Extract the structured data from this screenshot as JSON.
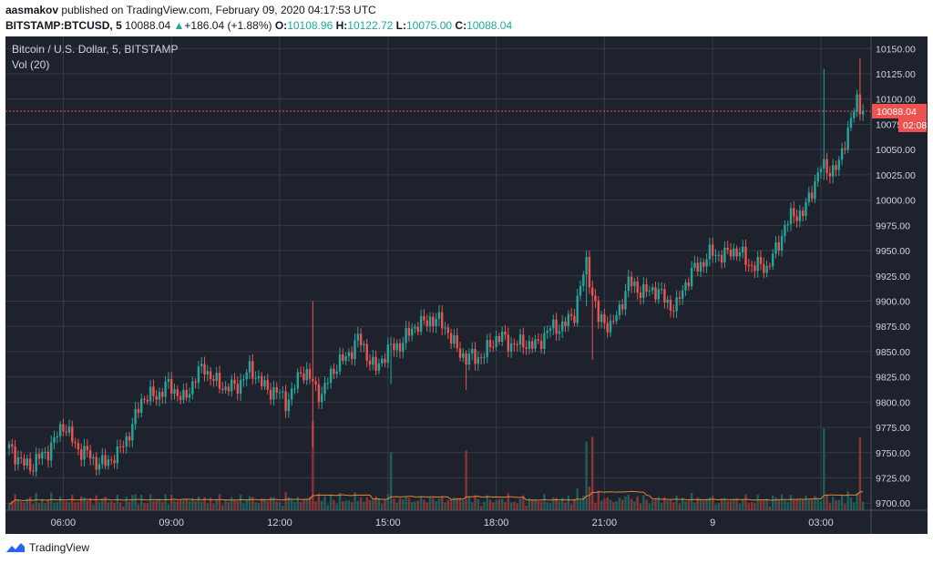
{
  "header": {
    "publisher": "aasmakov",
    "published_text": "published on TradingView.com, February 09, 2020 04:17:53 UTC",
    "symbol": "BITSTAMP:BTCUSD, 5",
    "last": "10088.04",
    "change": "+186.04 (+1.88%)",
    "o_label": "O:",
    "o_value": "10108.96",
    "h_label": "H:",
    "h_value": "10122.72",
    "l_label": "L:",
    "l_value": "10075.00",
    "c_label": "C:",
    "c_value": "10088.04"
  },
  "legend": {
    "title": "Bitcoin / U.S. Dollar, 5, BITSTAMP",
    "indicator": "Vol (20)"
  },
  "footer": {
    "brand": "TradingView"
  },
  "colors": {
    "background": "#1e222d",
    "grid": "#363a45",
    "up": "#26a69a",
    "down": "#ef5350",
    "up_volume": "#1f5f57",
    "down_volume": "#8a3436",
    "volume_ma": "#e0883d",
    "price_line": "#ef5350",
    "axis_text": "#d1d4dc"
  },
  "chart_data": {
    "type": "candlestick",
    "title": "Bitcoin / U.S. Dollar, 5, BITSTAMP",
    "ylim": [
      9693,
      10162
    ],
    "y_ticks": [
      "10150.00",
      "10125.00",
      "10100.00",
      "10075.00",
      "10050.00",
      "10025.00",
      "10000.00",
      "9975.00",
      "9950.00",
      "9925.00",
      "9900.00",
      "9875.00",
      "9850.00",
      "9825.00",
      "9800.00",
      "9775.00",
      "9750.00",
      "9725.00",
      "9700.00"
    ],
    "x_ticks": [
      "06:00",
      "09:00",
      "12:00",
      "15:00",
      "18:00",
      "21:00",
      "9",
      "03:00"
    ],
    "last_price": "10088.04",
    "countdown": "02:08",
    "volume_indicator": "Vol (20)",
    "close_anchors": [
      {
        "bar": 0,
        "close": 9752
      },
      {
        "bar": 8,
        "close": 9735
      },
      {
        "bar": 18,
        "close": 9775
      },
      {
        "bar": 22,
        "close": 9760
      },
      {
        "bar": 28,
        "close": 9740
      },
      {
        "bar": 36,
        "close": 9745
      },
      {
        "bar": 44,
        "close": 9800
      },
      {
        "bar": 52,
        "close": 9815
      },
      {
        "bar": 58,
        "close": 9805
      },
      {
        "bar": 65,
        "close": 9835
      },
      {
        "bar": 72,
        "close": 9810
      },
      {
        "bar": 80,
        "close": 9830
      },
      {
        "bar": 86,
        "close": 9815
      },
      {
        "bar": 92,
        "close": 9800
      },
      {
        "bar": 97,
        "close": 9830
      },
      {
        "bar": 104,
        "close": 9810
      },
      {
        "bar": 110,
        "close": 9840
      },
      {
        "bar": 116,
        "close": 9860
      },
      {
        "bar": 122,
        "close": 9835
      },
      {
        "bar": 128,
        "close": 9855
      },
      {
        "bar": 134,
        "close": 9870
      },
      {
        "bar": 140,
        "close": 9885
      },
      {
        "bar": 146,
        "close": 9870
      },
      {
        "bar": 152,
        "close": 9840
      },
      {
        "bar": 158,
        "close": 9850
      },
      {
        "bar": 164,
        "close": 9865
      },
      {
        "bar": 170,
        "close": 9855
      },
      {
        "bar": 176,
        "close": 9860
      },
      {
        "bar": 182,
        "close": 9875
      },
      {
        "bar": 188,
        "close": 9885
      },
      {
        "bar": 192,
        "close": 9940
      },
      {
        "bar": 196,
        "close": 9880
      },
      {
        "bar": 200,
        "close": 9875
      },
      {
        "bar": 206,
        "close": 9915
      },
      {
        "bar": 214,
        "close": 9910
      },
      {
        "bar": 222,
        "close": 9895
      },
      {
        "bar": 228,
        "close": 9935
      },
      {
        "bar": 234,
        "close": 9945
      },
      {
        "bar": 240,
        "close": 9950
      },
      {
        "bar": 246,
        "close": 9940
      },
      {
        "bar": 252,
        "close": 9930
      },
      {
        "bar": 258,
        "close": 9975
      },
      {
        "bar": 264,
        "close": 9990
      },
      {
        "bar": 270,
        "close": 10030
      },
      {
        "bar": 276,
        "close": 10035
      },
      {
        "bar": 282,
        "close": 10100
      },
      {
        "bar": 284,
        "close": 10088
      }
    ],
    "spikes": [
      {
        "bar": 101,
        "high": 9900,
        "low": 9755
      },
      {
        "bar": 127,
        "low": 9818
      },
      {
        "bar": 152,
        "low": 9812
      },
      {
        "bar": 192,
        "high": 9950,
        "low": 9895
      },
      {
        "bar": 194,
        "low": 9842
      },
      {
        "bar": 271,
        "high": 10130,
        "low": 10020
      },
      {
        "bar": 283,
        "high": 10140
      }
    ]
  }
}
